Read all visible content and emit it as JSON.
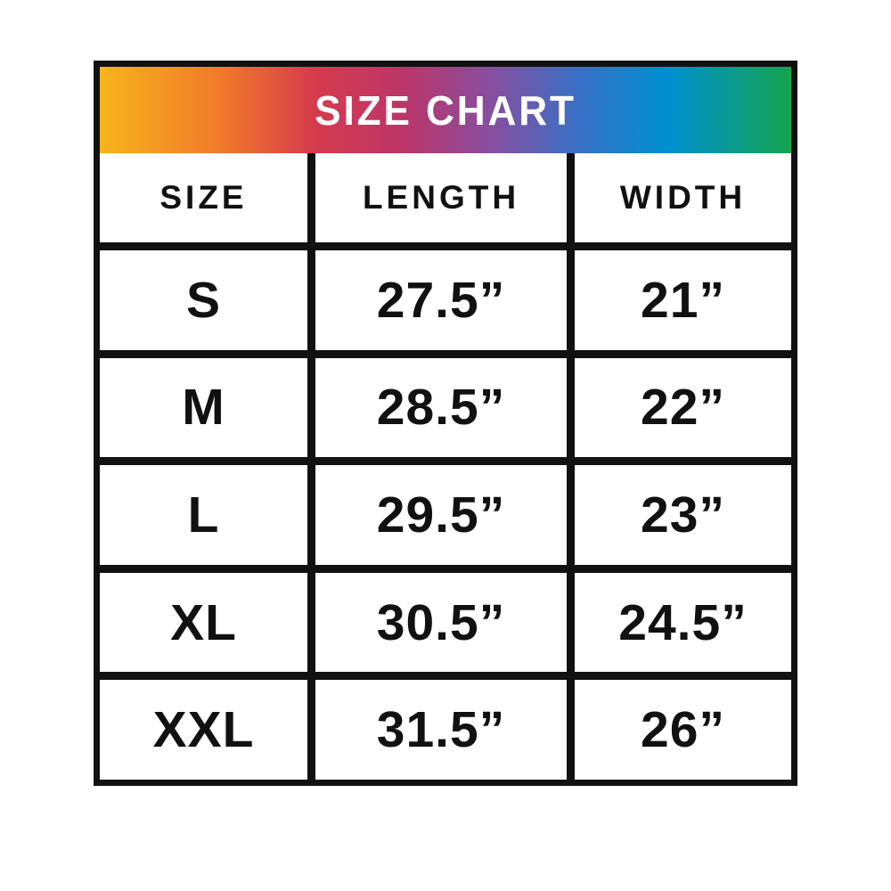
{
  "chart_data": {
    "type": "table",
    "title": "SIZE CHART",
    "columns": [
      "SIZE",
      "LENGTH",
      "WIDTH"
    ],
    "rows": [
      [
        "S",
        "27.5”",
        "21”"
      ],
      [
        "M",
        "28.5”",
        "22”"
      ],
      [
        "L",
        "29.5”",
        "23”"
      ],
      [
        "XL",
        "30.5”",
        "24.5”"
      ],
      [
        "XXL",
        "31.5”",
        "26”"
      ]
    ],
    "numeric": {
      "sizes": [
        "S",
        "M",
        "L",
        "XL",
        "XXL"
      ],
      "length_inches": [
        27.5,
        28.5,
        29.5,
        30.5,
        31.5
      ],
      "width_inches": [
        21,
        22,
        23,
        24.5,
        26
      ]
    },
    "layout_hints": {
      "header_style": "rainbow-gradient-band",
      "grid": "thick-black-borders"
    }
  },
  "colors": {
    "border": "#111111",
    "text": "#111111",
    "header_text": "#FFFFFF",
    "background": "#FFFFFF",
    "gradient_stops": [
      "#F7B41B 0%",
      "#F0782B 18%",
      "#D63B4D 31%",
      "#BB3568 44%",
      "#8A4D9E 56%",
      "#3A70C5 69%",
      "#0090D2 82%",
      "#16A54F 100%"
    ]
  }
}
